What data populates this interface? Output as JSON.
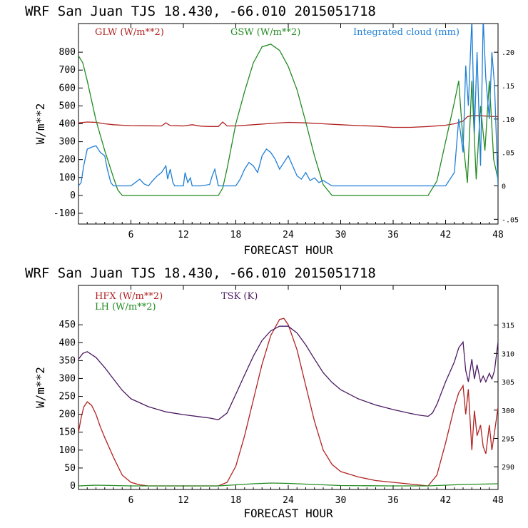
{
  "chart_data": [
    {
      "type": "line",
      "title": "WRF  San Juan TJS  18.430, -66.010  2015051718",
      "xlabel": "FORECAST HOUR",
      "ylabel": "W/m**2",
      "xlim": [
        0,
        48
      ],
      "ylim": [
        -160,
        960
      ],
      "xticks": [
        6,
        12,
        18,
        24,
        30,
        36,
        42,
        48
      ],
      "yticks": [
        -100,
        0,
        100,
        200,
        300,
        400,
        500,
        600,
        700,
        800
      ],
      "y2lim": [
        -0.0571,
        0.2429
      ],
      "y2ticks": [
        -0.05,
        0,
        0.05,
        0.1,
        0.15,
        0.2
      ],
      "y2ticklabels": [
        "-.05",
        "0",
        ".05",
        ".10",
        ".15",
        ".20"
      ],
      "grid": false,
      "legend_position": "top",
      "series": [
        {
          "name": "GLW (W/m**2)",
          "axis": "left",
          "color": "#b22222",
          "x": [
            0,
            1,
            2,
            3,
            4,
            5,
            6,
            8,
            9.5,
            10,
            10.5,
            12,
            13,
            14,
            15,
            16,
            16.5,
            17,
            18,
            20,
            22,
            24,
            26,
            28,
            30,
            32,
            34,
            36,
            38,
            40,
            42,
            43,
            44,
            44.5,
            45,
            46,
            47,
            48
          ],
          "y": [
            405,
            410,
            408,
            400,
            395,
            392,
            390,
            389,
            388,
            405,
            390,
            388,
            395,
            387,
            385,
            385,
            410,
            388,
            388,
            395,
            402,
            408,
            405,
            400,
            395,
            390,
            387,
            380,
            380,
            385,
            392,
            400,
            415,
            440,
            445,
            445,
            442,
            440
          ]
        },
        {
          "name": "GSW (W/m**2)",
          "axis": "left",
          "color": "#228b22",
          "x": [
            0,
            0.5,
            1,
            2,
            3,
            4,
            4.5,
            5,
            6,
            10,
            15,
            16,
            16.5,
            17,
            18,
            19,
            20,
            21,
            22,
            23,
            24,
            25,
            26,
            27,
            28,
            29,
            30,
            35,
            40,
            41,
            42,
            43,
            43.5,
            44,
            44.5,
            45,
            45.5,
            46,
            46.5,
            47,
            47.5,
            48
          ],
          "y": [
            780,
            740,
            640,
            420,
            250,
            100,
            30,
            0,
            0,
            0,
            0,
            0,
            40,
            150,
            400,
            580,
            740,
            830,
            845,
            810,
            720,
            590,
            410,
            220,
            60,
            0,
            0,
            0,
            0,
            80,
            300,
            520,
            640,
            300,
            70,
            640,
            90,
            500,
            250,
            640,
            200,
            90
          ]
        },
        {
          "name": "Integrated cloud (mm)",
          "axis": "right",
          "color": "#1f7fd6",
          "x": [
            0,
            0.3,
            0.6,
            1,
            1.5,
            2,
            2.5,
            3,
            3.3,
            3.7,
            4,
            4.5,
            5,
            6,
            6.5,
            7,
            7.5,
            8,
            8.5,
            9,
            9.5,
            10,
            10.2,
            10.5,
            10.8,
            11,
            12,
            12.2,
            12.5,
            12.8,
            13,
            14,
            15,
            15.3,
            15.6,
            16,
            17,
            18,
            18.5,
            19,
            19.5,
            20,
            20.5,
            21,
            21.5,
            22,
            22.5,
            23,
            23.5,
            24,
            24.5,
            25,
            25.5,
            26,
            26.5,
            27,
            27.5,
            28,
            29,
            30,
            35,
            40,
            41,
            42,
            43,
            43.5,
            44,
            44.3,
            44.6,
            45,
            45.3,
            45.6,
            46,
            46.3,
            46.6,
            47,
            47.3,
            47.6,
            48
          ],
          "y": [
            0,
            0.005,
            0.03,
            0.055,
            0.058,
            0.06,
            0.05,
            0.045,
            0.025,
            0.005,
            0,
            0,
            0,
            0,
            0.005,
            0.01,
            0.003,
            0,
            0.008,
            0.015,
            0.02,
            0.03,
            0.01,
            0.025,
            0.005,
            0,
            0,
            0.02,
            0.005,
            0.012,
            0,
            0,
            0.002,
            0.015,
            0.025,
            0,
            0,
            0,
            0.01,
            0.025,
            0.035,
            0.03,
            0.02,
            0.045,
            0.055,
            0.05,
            0.04,
            0.025,
            0.035,
            0.045,
            0.03,
            0.015,
            0.01,
            0.02,
            0.008,
            0.012,
            0.005,
            0.008,
            0,
            0,
            0,
            0,
            0,
            0,
            0.02,
            0.1,
            0.05,
            0.18,
            0.12,
            0.25,
            0.08,
            0.2,
            0.03,
            0.25,
            0.16,
            0.1,
            0.2,
            0.15,
            0
          ]
        }
      ]
    },
    {
      "type": "line",
      "title": "WRF  San Juan TJS  18.430, -66.010  2015051718",
      "xlabel": "FORECAST HOUR",
      "ylabel": "W/m**2",
      "xlim": [
        0,
        48
      ],
      "ylim": [
        -10,
        560
      ],
      "xticks": [
        6,
        12,
        18,
        24,
        30,
        36,
        42,
        48
      ],
      "yticks": [
        0,
        50,
        100,
        150,
        200,
        250,
        300,
        350,
        400,
        450
      ],
      "y2lim": [
        286,
        322
      ],
      "y2ticks": [
        290,
        295,
        300,
        305,
        310,
        315
      ],
      "y2ticklabels": [
        "290",
        "295",
        "300",
        "305",
        "310",
        "315"
      ],
      "grid": false,
      "legend_position": "top-left",
      "series": [
        {
          "name": "HFX (W/m**2)",
          "axis": "left",
          "color": "#b22222",
          "x": [
            0,
            0.3,
            0.6,
            1,
            1.5,
            2,
            2.5,
            3,
            4,
            5,
            6,
            7,
            8,
            10,
            12,
            14,
            16,
            17,
            18,
            19,
            20,
            21,
            22,
            23,
            23.5,
            24,
            25,
            26,
            27,
            28,
            29,
            30,
            32,
            34,
            36,
            38,
            40,
            41,
            42,
            43,
            43.5,
            44,
            44.3,
            44.6,
            45,
            45.3,
            45.6,
            46,
            46.3,
            46.6,
            47,
            47.3,
            47.6,
            48
          ],
          "y": [
            150,
            190,
            220,
            235,
            225,
            200,
            165,
            135,
            80,
            30,
            10,
            3,
            0,
            0,
            0,
            0,
            0,
            10,
            55,
            140,
            240,
            340,
            420,
            465,
            468,
            450,
            380,
            280,
            180,
            100,
            60,
            40,
            25,
            15,
            10,
            5,
            0,
            30,
            120,
            220,
            260,
            280,
            200,
            270,
            100,
            210,
            140,
            170,
            110,
            90,
            170,
            100,
            150,
            220
          ]
        },
        {
          "name": "LH (W/m**2)",
          "axis": "left",
          "color": "#228b22",
          "x": [
            0,
            2,
            4,
            6,
            10,
            16,
            18,
            20,
            22,
            24,
            26,
            28,
            30,
            36,
            40,
            42,
            44,
            46,
            48
          ],
          "y": [
            0,
            2,
            1,
            0,
            0,
            0,
            3,
            6,
            8,
            7,
            5,
            3,
            1,
            0,
            0,
            2,
            4,
            5,
            6
          ]
        },
        {
          "name": "TSK (K)",
          "axis": "right",
          "color": "#4b1a63",
          "x": [
            0,
            0.5,
            1,
            1.5,
            2,
            3,
            4,
            5,
            6,
            8,
            10,
            12,
            14,
            15,
            16,
            17,
            18,
            19,
            20,
            21,
            22,
            23,
            24,
            25,
            26,
            27,
            28,
            29,
            30,
            32,
            34,
            36,
            38,
            39,
            40,
            40.5,
            41,
            42,
            43,
            43.5,
            44,
            44.3,
            44.6,
            45,
            45.3,
            45.6,
            46,
            46.3,
            46.6,
            47,
            47.3,
            47.6,
            48
          ],
          "y": [
            309,
            310,
            310.3,
            309.8,
            309.3,
            307.5,
            305.5,
            303.5,
            302,
            300.6,
            299.7,
            299.2,
            298.8,
            298.6,
            298.3,
            299.5,
            302.8,
            306.2,
            309.5,
            312.3,
            314,
            314.8,
            314.8,
            313.6,
            311.5,
            309,
            306.6,
            304.9,
            303.6,
            302,
            300.9,
            300.1,
            299.4,
            299.1,
            298.9,
            299.5,
            301,
            305,
            308.5,
            311,
            312,
            307,
            305,
            309,
            305.5,
            308,
            305,
            306,
            305,
            306.5,
            305.5,
            307,
            312
          ]
        }
      ]
    }
  ]
}
